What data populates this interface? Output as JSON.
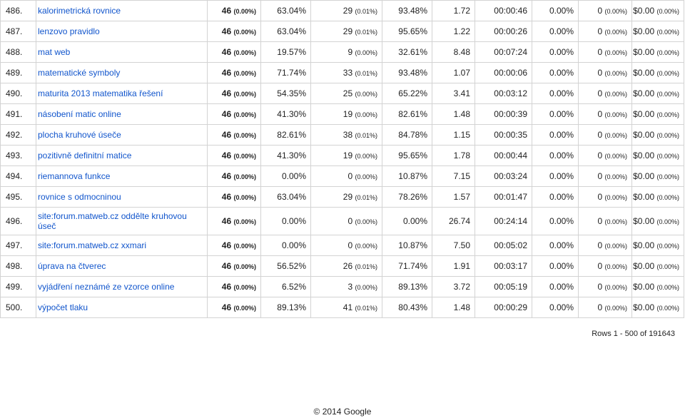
{
  "rows": [
    {
      "idx": "486.",
      "kw": "kalorimetrická rovnice",
      "sessions": "46",
      "sessions_pct": "(0.00%)",
      "new_pct": "63.04%",
      "new_users": "29",
      "new_users_pct": "(0.01%)",
      "bounce": "93.48%",
      "pages": "1.72",
      "duration": "00:00:46",
      "conv_rate": "0.00%",
      "trans": "0",
      "trans_pct": "(0.00%)",
      "revenue": "$0.00",
      "revenue_pct": "(0.00%)"
    },
    {
      "idx": "487.",
      "kw": "lenzovo pravidlo",
      "sessions": "46",
      "sessions_pct": "(0.00%)",
      "new_pct": "63.04%",
      "new_users": "29",
      "new_users_pct": "(0.01%)",
      "bounce": "95.65%",
      "pages": "1.22",
      "duration": "00:00:26",
      "conv_rate": "0.00%",
      "trans": "0",
      "trans_pct": "(0.00%)",
      "revenue": "$0.00",
      "revenue_pct": "(0.00%)"
    },
    {
      "idx": "488.",
      "kw": "mat web",
      "sessions": "46",
      "sessions_pct": "(0.00%)",
      "new_pct": "19.57%",
      "new_users": "9",
      "new_users_pct": "(0.00%)",
      "bounce": "32.61%",
      "pages": "8.48",
      "duration": "00:07:24",
      "conv_rate": "0.00%",
      "trans": "0",
      "trans_pct": "(0.00%)",
      "revenue": "$0.00",
      "revenue_pct": "(0.00%)"
    },
    {
      "idx": "489.",
      "kw": "matematické symboly",
      "sessions": "46",
      "sessions_pct": "(0.00%)",
      "new_pct": "71.74%",
      "new_users": "33",
      "new_users_pct": "(0.01%)",
      "bounce": "93.48%",
      "pages": "1.07",
      "duration": "00:00:06",
      "conv_rate": "0.00%",
      "trans": "0",
      "trans_pct": "(0.00%)",
      "revenue": "$0.00",
      "revenue_pct": "(0.00%)"
    },
    {
      "idx": "490.",
      "kw": "maturita 2013 matematika řešení",
      "sessions": "46",
      "sessions_pct": "(0.00%)",
      "new_pct": "54.35%",
      "new_users": "25",
      "new_users_pct": "(0.00%)",
      "bounce": "65.22%",
      "pages": "3.41",
      "duration": "00:03:12",
      "conv_rate": "0.00%",
      "trans": "0",
      "trans_pct": "(0.00%)",
      "revenue": "$0.00",
      "revenue_pct": "(0.00%)"
    },
    {
      "idx": "491.",
      "kw": "násobení matic online",
      "sessions": "46",
      "sessions_pct": "(0.00%)",
      "new_pct": "41.30%",
      "new_users": "19",
      "new_users_pct": "(0.00%)",
      "bounce": "82.61%",
      "pages": "1.48",
      "duration": "00:00:39",
      "conv_rate": "0.00%",
      "trans": "0",
      "trans_pct": "(0.00%)",
      "revenue": "$0.00",
      "revenue_pct": "(0.00%)"
    },
    {
      "idx": "492.",
      "kw": "plocha kruhové úseče",
      "sessions": "46",
      "sessions_pct": "(0.00%)",
      "new_pct": "82.61%",
      "new_users": "38",
      "new_users_pct": "(0.01%)",
      "bounce": "84.78%",
      "pages": "1.15",
      "duration": "00:00:35",
      "conv_rate": "0.00%",
      "trans": "0",
      "trans_pct": "(0.00%)",
      "revenue": "$0.00",
      "revenue_pct": "(0.00%)"
    },
    {
      "idx": "493.",
      "kw": "pozitivně definitní matice",
      "sessions": "46",
      "sessions_pct": "(0.00%)",
      "new_pct": "41.30%",
      "new_users": "19",
      "new_users_pct": "(0.00%)",
      "bounce": "95.65%",
      "pages": "1.78",
      "duration": "00:00:44",
      "conv_rate": "0.00%",
      "trans": "0",
      "trans_pct": "(0.00%)",
      "revenue": "$0.00",
      "revenue_pct": "(0.00%)"
    },
    {
      "idx": "494.",
      "kw": "riemannova funkce",
      "sessions": "46",
      "sessions_pct": "(0.00%)",
      "new_pct": "0.00%",
      "new_users": "0",
      "new_users_pct": "(0.00%)",
      "bounce": "10.87%",
      "pages": "7.15",
      "duration": "00:03:24",
      "conv_rate": "0.00%",
      "trans": "0",
      "trans_pct": "(0.00%)",
      "revenue": "$0.00",
      "revenue_pct": "(0.00%)"
    },
    {
      "idx": "495.",
      "kw": "rovnice s odmocninou",
      "sessions": "46",
      "sessions_pct": "(0.00%)",
      "new_pct": "63.04%",
      "new_users": "29",
      "new_users_pct": "(0.01%)",
      "bounce": "78.26%",
      "pages": "1.57",
      "duration": "00:01:47",
      "conv_rate": "0.00%",
      "trans": "0",
      "trans_pct": "(0.00%)",
      "revenue": "$0.00",
      "revenue_pct": "(0.00%)"
    },
    {
      "idx": "496.",
      "kw": "site:forum.matweb.cz oddělte kruhovou úseč",
      "sessions": "46",
      "sessions_pct": "(0.00%)",
      "new_pct": "0.00%",
      "new_users": "0",
      "new_users_pct": "(0.00%)",
      "bounce": "0.00%",
      "pages": "26.74",
      "duration": "00:24:14",
      "conv_rate": "0.00%",
      "trans": "0",
      "trans_pct": "(0.00%)",
      "revenue": "$0.00",
      "revenue_pct": "(0.00%)"
    },
    {
      "idx": "497.",
      "kw": "site:forum.matweb.cz xxmari",
      "sessions": "46",
      "sessions_pct": "(0.00%)",
      "new_pct": "0.00%",
      "new_users": "0",
      "new_users_pct": "(0.00%)",
      "bounce": "10.87%",
      "pages": "7.50",
      "duration": "00:05:02",
      "conv_rate": "0.00%",
      "trans": "0",
      "trans_pct": "(0.00%)",
      "revenue": "$0.00",
      "revenue_pct": "(0.00%)"
    },
    {
      "idx": "498.",
      "kw": "úprava na čtverec",
      "sessions": "46",
      "sessions_pct": "(0.00%)",
      "new_pct": "56.52%",
      "new_users": "26",
      "new_users_pct": "(0.01%)",
      "bounce": "71.74%",
      "pages": "1.91",
      "duration": "00:03:17",
      "conv_rate": "0.00%",
      "trans": "0",
      "trans_pct": "(0.00%)",
      "revenue": "$0.00",
      "revenue_pct": "(0.00%)"
    },
    {
      "idx": "499.",
      "kw": "vyjádření neznámé ze vzorce online",
      "sessions": "46",
      "sessions_pct": "(0.00%)",
      "new_pct": "6.52%",
      "new_users": "3",
      "new_users_pct": "(0.00%)",
      "bounce": "89.13%",
      "pages": "3.72",
      "duration": "00:05:19",
      "conv_rate": "0.00%",
      "trans": "0",
      "trans_pct": "(0.00%)",
      "revenue": "$0.00",
      "revenue_pct": "(0.00%)"
    },
    {
      "idx": "500.",
      "kw": "výpočet tlaku",
      "sessions": "46",
      "sessions_pct": "(0.00%)",
      "new_pct": "89.13%",
      "new_users": "41",
      "new_users_pct": "(0.01%)",
      "bounce": "80.43%",
      "pages": "1.48",
      "duration": "00:00:29",
      "conv_rate": "0.00%",
      "trans": "0",
      "trans_pct": "(0.00%)",
      "revenue": "$0.00",
      "revenue_pct": "(0.00%)"
    }
  ],
  "rows_info": "Rows 1 - 500 of 191643",
  "footer": "© 2014 Google",
  "colors": {
    "link": "#1155cc",
    "border": "#d3d3d3",
    "text": "#222222"
  }
}
